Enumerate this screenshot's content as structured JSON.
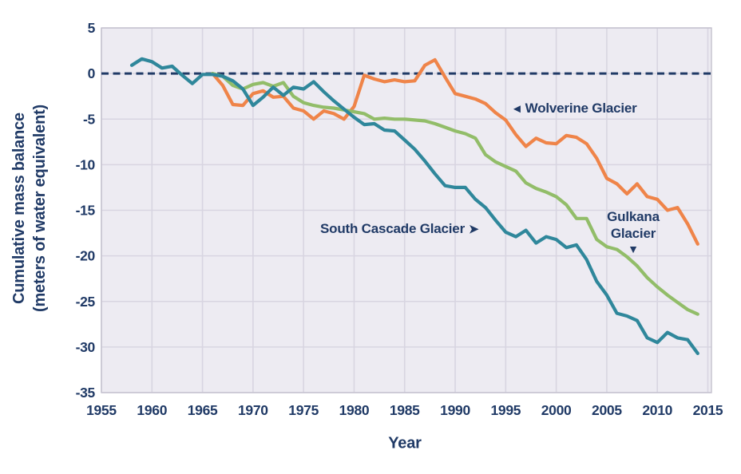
{
  "figure": {
    "y_axis_title_line1": "Cumulative mass balance",
    "y_axis_title_line2": "(meters of water equivalent)",
    "x_axis_title": "Year"
  },
  "annotations": {
    "wolverine": {
      "arrow": "◄",
      "label": "Wolverine Glacier"
    },
    "south_cascade": {
      "label": "South Cascade Glacier",
      "arrow": "➤"
    },
    "gulkana": {
      "line1": "Gulkana",
      "line2": "Glacier",
      "arrow": "▼"
    }
  },
  "colors": {
    "south_cascade": "#2F879B",
    "wolverine": "#EF8449",
    "gulkana": "#92BD69",
    "navy": "#203A66",
    "plot_background": "#EDEBF2",
    "gridline": "#D8D5E1",
    "plot_border": "#C4C1CE"
  },
  "chart_data": {
    "type": "line",
    "title": "",
    "xlabel": "Year",
    "ylabel": "Cumulative mass balance (meters of water equivalent)",
    "xlim": [
      1955,
      2015
    ],
    "ylim": [
      -35,
      5
    ],
    "x_ticks": [
      1955,
      1960,
      1965,
      1970,
      1975,
      1980,
      1985,
      1990,
      1995,
      2000,
      2005,
      2010,
      2015
    ],
    "y_ticks": [
      5,
      0,
      -5,
      -10,
      -15,
      -20,
      -25,
      -30,
      -35
    ],
    "grid": true,
    "zero_line": "dashed",
    "legend_position": "none (direct labels with arrows)",
    "series": [
      {
        "name": "Wolverine Glacier",
        "color_key": "wolverine",
        "start_year": 1966,
        "values": [
          0.0,
          -1.3,
          -3.4,
          -3.5,
          -2.2,
          -1.9,
          -2.6,
          -2.5,
          -3.8,
          -4.1,
          -5.0,
          -4.1,
          -4.4,
          -5.0,
          -3.6,
          -0.2,
          -0.6,
          -0.9,
          -0.7,
          -0.9,
          -0.8,
          0.9,
          1.5,
          -0.4,
          -2.2,
          -2.5,
          -2.8,
          -3.3,
          -4.3,
          -5.1,
          -6.7,
          -8.0,
          -7.1,
          -7.6,
          -7.7,
          -6.8,
          -7.0,
          -7.7,
          -9.3,
          -11.5,
          -12.1,
          -13.2,
          -12.1,
          -13.5,
          -13.8,
          -15.0,
          -14.7,
          -16.5,
          -18.7
        ]
      },
      {
        "name": "Gulkana Glacier",
        "color_key": "gulkana",
        "start_year": 1966,
        "values": [
          0.0,
          -0.3,
          -1.3,
          -1.7,
          -1.2,
          -1.0,
          -1.4,
          -1.0,
          -2.5,
          -3.2,
          -3.5,
          -3.7,
          -3.8,
          -4.0,
          -4.2,
          -4.4,
          -5.0,
          -4.9,
          -5.0,
          -5.0,
          -5.1,
          -5.2,
          -5.5,
          -5.9,
          -6.3,
          -6.6,
          -7.1,
          -8.9,
          -9.7,
          -10.2,
          -10.7,
          -12.0,
          -12.6,
          -13.0,
          -13.5,
          -14.4,
          -15.9,
          -15.9,
          -18.2,
          -19.0,
          -19.3,
          -20.1,
          -21.1,
          -22.4,
          -23.4,
          -24.3,
          -25.1,
          -25.9,
          -26.4
        ]
      },
      {
        "name": "South Cascade Glacier",
        "color_key": "south_cascade",
        "start_year": 1958,
        "values": [
          0.9,
          1.6,
          1.3,
          0.6,
          0.8,
          -0.2,
          -1.1,
          -0.1,
          -0.1,
          -0.3,
          -0.8,
          -1.7,
          -3.5,
          -2.6,
          -1.5,
          -2.4,
          -1.5,
          -1.7,
          -0.9,
          -2.0,
          -3.0,
          -3.9,
          -4.8,
          -5.6,
          -5.5,
          -6.2,
          -6.3,
          -7.3,
          -8.3,
          -9.6,
          -11.0,
          -12.3,
          -12.5,
          -12.5,
          -13.8,
          -14.7,
          -16.1,
          -17.4,
          -17.9,
          -17.2,
          -18.6,
          -17.9,
          -18.2,
          -19.1,
          -18.8,
          -20.4,
          -22.8,
          -24.3,
          -26.3,
          -26.6,
          -27.1,
          -29.0,
          -29.5,
          -28.4,
          -29.0,
          -29.2,
          -30.7
        ]
      }
    ]
  }
}
